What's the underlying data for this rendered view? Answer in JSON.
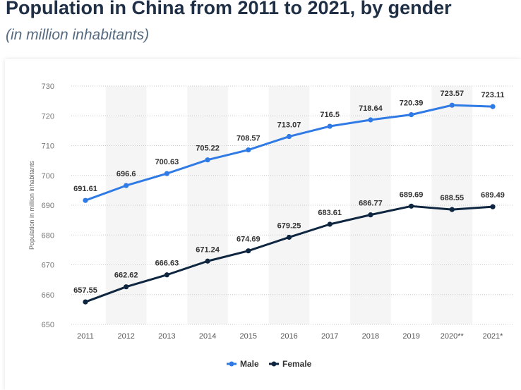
{
  "header": {
    "title": "Population in China from 2011 to 2021, by gender",
    "subtitle": "(in million inhabitants)"
  },
  "colors": {
    "male": "#2f7ae5",
    "female": "#0f2640",
    "band": "#f5f5f5",
    "grid": "#c9c9c9"
  },
  "chart_data": {
    "type": "line",
    "ylabel": "Population in million inhabitants",
    "xlabel": "",
    "ylim": [
      650,
      730
    ],
    "yticks": [
      650,
      660,
      670,
      680,
      690,
      700,
      710,
      720,
      730
    ],
    "categories": [
      "2011",
      "2012",
      "2013",
      "2014",
      "2015",
      "2016",
      "2017",
      "2018",
      "2019",
      "2020**",
      "2021*"
    ],
    "grid": true,
    "legend_position": "bottom-center",
    "series": [
      {
        "name": "Male",
        "color": "#2f7ae5",
        "values": [
          691.61,
          696.6,
          700.63,
          705.22,
          708.57,
          713.07,
          716.5,
          718.64,
          720.39,
          723.57,
          723.11
        ]
      },
      {
        "name": "Female",
        "color": "#0f2640",
        "values": [
          657.55,
          662.62,
          666.63,
          671.24,
          674.69,
          679.25,
          683.61,
          686.77,
          689.69,
          688.55,
          689.49
        ]
      }
    ]
  }
}
